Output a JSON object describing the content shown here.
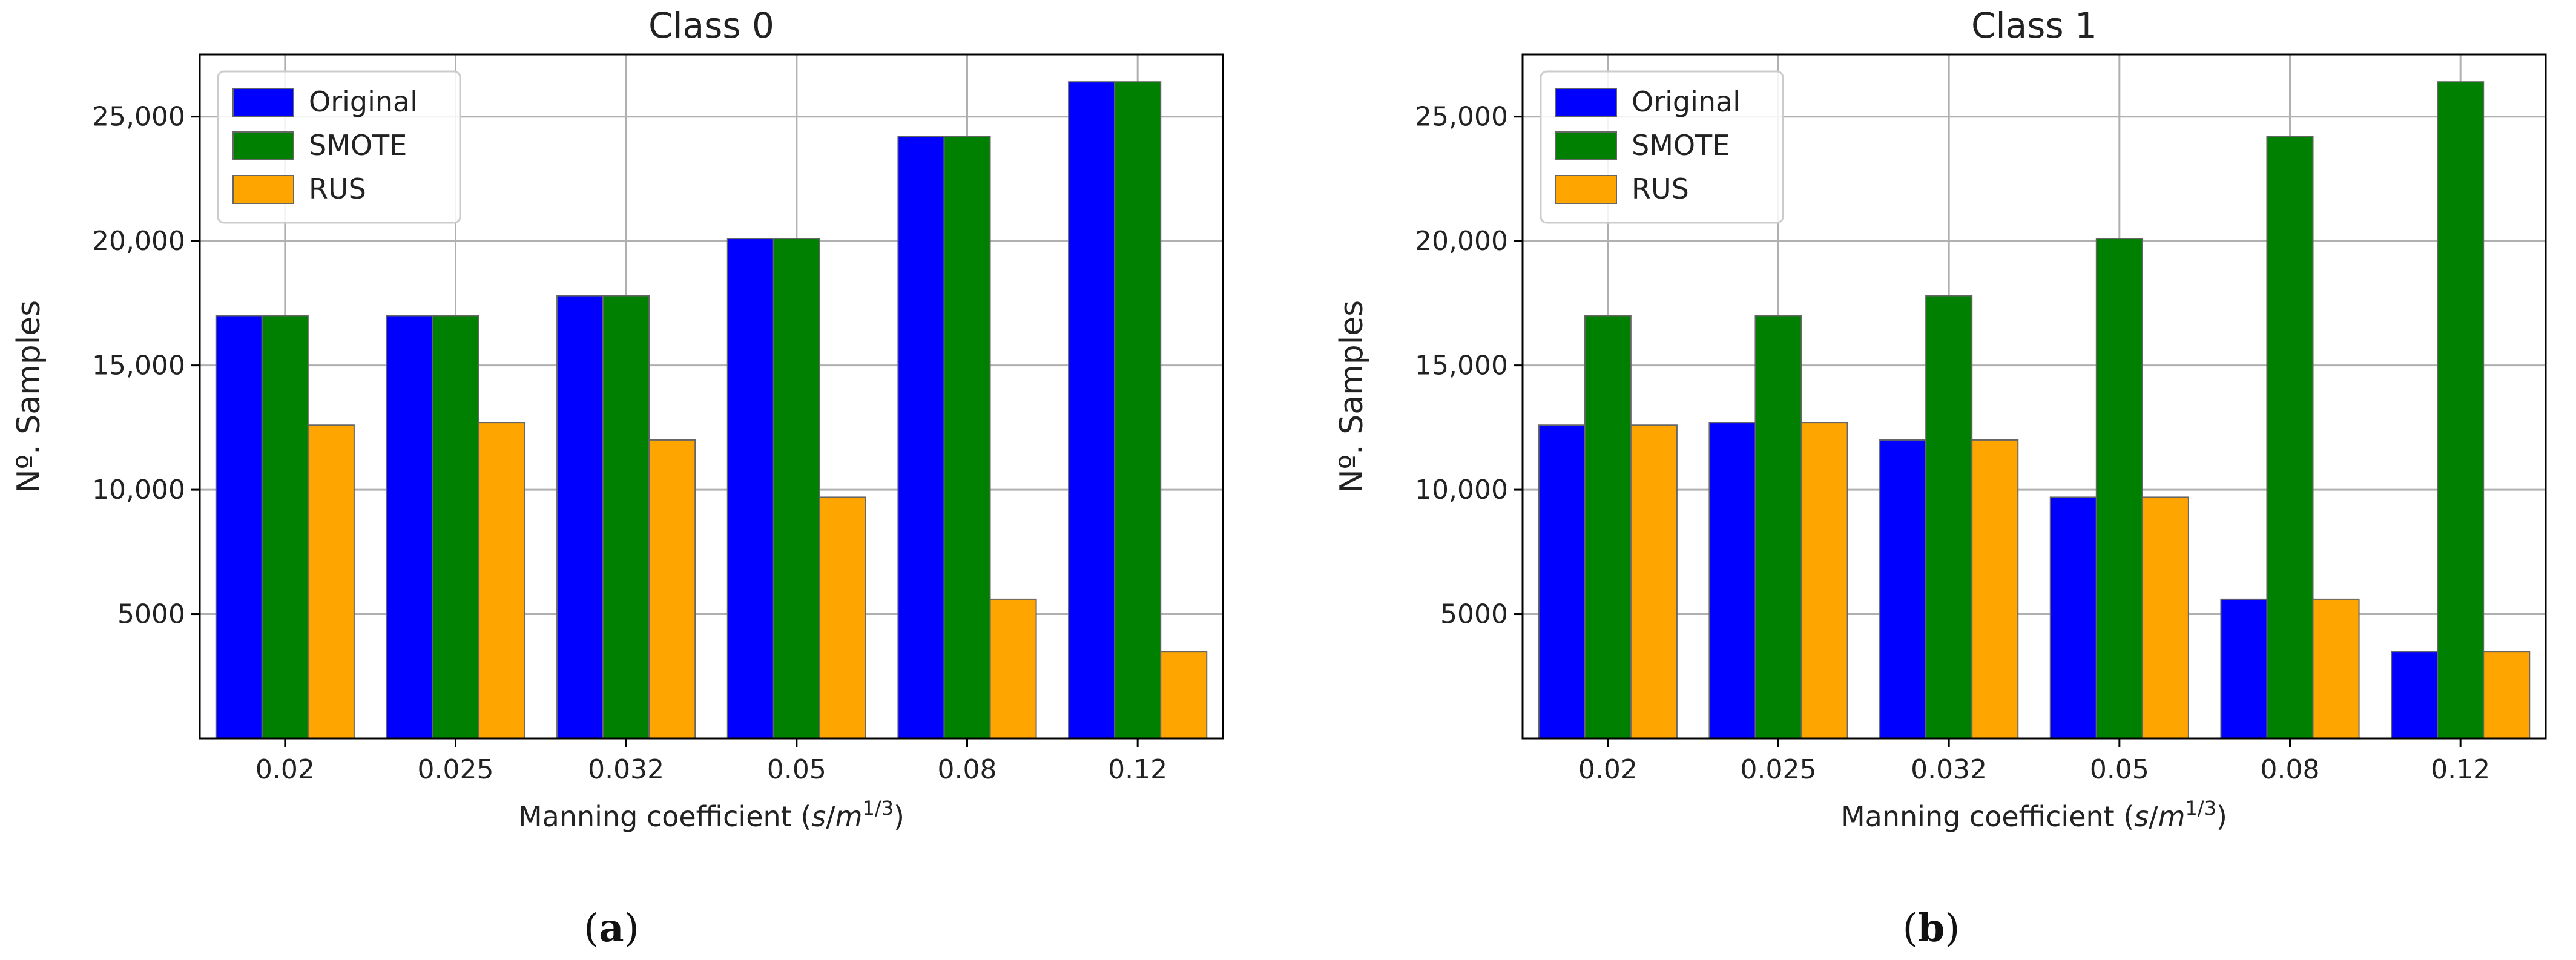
{
  "colors": {
    "Original": "#0000ff",
    "SMOTE": "#008000",
    "RUS": "#ffa500"
  },
  "chart_data": [
    {
      "type": "bar",
      "title": "Class 0",
      "panel_label": [
        "(",
        "a",
        ")"
      ],
      "xlabel_parts": [
        "Manning coefficient (",
        "s",
        "/",
        "m",
        "1/3",
        ")"
      ],
      "ylabel": "Nº. Samples",
      "categories": [
        "0.02",
        "0.025",
        "0.032",
        "0.05",
        "0.08",
        "0.12"
      ],
      "yticks": [
        5000,
        10000,
        15000,
        20000,
        25000
      ],
      "ytick_labels": [
        "5000",
        "10,000",
        "15,000",
        "20,000",
        "25,000"
      ],
      "ylim": [
        0,
        27500
      ],
      "grid": true,
      "legend_position": "top-left",
      "series": [
        {
          "name": "Original",
          "values": [
            17000,
            17000,
            17800,
            20100,
            24200,
            26400
          ]
        },
        {
          "name": "SMOTE",
          "values": [
            17000,
            17000,
            17800,
            20100,
            24200,
            26400
          ]
        },
        {
          "name": "RUS",
          "values": [
            12600,
            12700,
            12000,
            9700,
            5600,
            3500
          ]
        }
      ]
    },
    {
      "type": "bar",
      "title": "Class 1",
      "panel_label": [
        "(",
        "b",
        ")"
      ],
      "xlabel_parts": [
        "Manning coefficient (",
        "s",
        "/",
        "m",
        "1/3",
        ")"
      ],
      "ylabel": "Nº. Samples",
      "categories": [
        "0.02",
        "0.025",
        "0.032",
        "0.05",
        "0.08",
        "0.12"
      ],
      "yticks": [
        5000,
        10000,
        15000,
        20000,
        25000
      ],
      "ytick_labels": [
        "5000",
        "10,000",
        "15,000",
        "20,000",
        "25,000"
      ],
      "ylim": [
        0,
        27500
      ],
      "grid": true,
      "legend_position": "top-left",
      "series": [
        {
          "name": "Original",
          "values": [
            12600,
            12700,
            12000,
            9700,
            5600,
            3500
          ]
        },
        {
          "name": "SMOTE",
          "values": [
            17000,
            17000,
            17800,
            20100,
            24200,
            26400
          ]
        },
        {
          "name": "RUS",
          "values": [
            12600,
            12700,
            12000,
            9700,
            5600,
            3500
          ]
        }
      ]
    }
  ]
}
